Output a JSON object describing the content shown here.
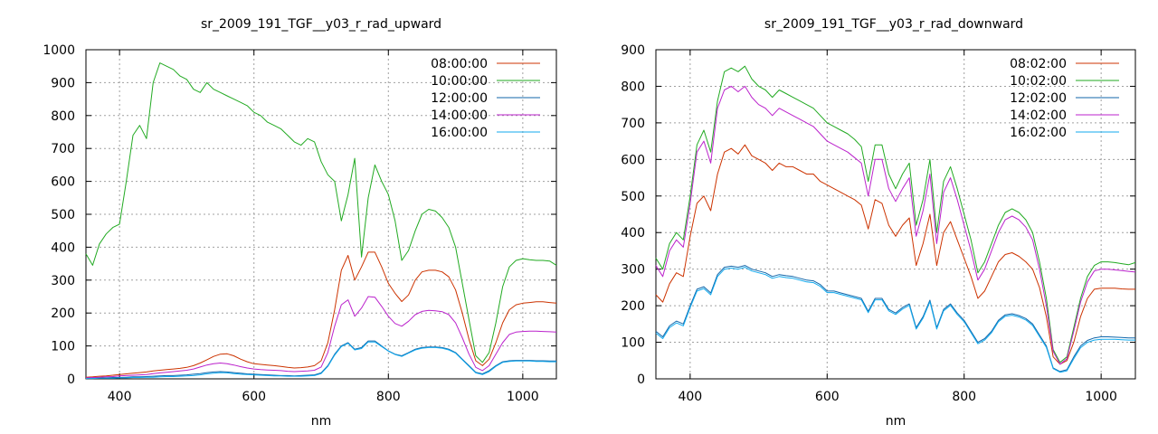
{
  "chart_data": [
    {
      "type": "line",
      "title": "sr_2009_191_TGF__y03_r_rad_upward",
      "xlabel": "nm",
      "ylabel": "",
      "xlim": [
        350,
        1050
      ],
      "ylim": [
        0,
        1000
      ],
      "xticks": [
        400,
        600,
        800,
        1000
      ],
      "yticks": [
        0,
        100,
        200,
        300,
        400,
        500,
        600,
        700,
        800,
        900,
        1000
      ],
      "grid": true,
      "legend_position": "top-right",
      "x": [
        350,
        360,
        370,
        380,
        390,
        400,
        410,
        420,
        430,
        440,
        450,
        460,
        470,
        480,
        490,
        500,
        510,
        520,
        530,
        540,
        550,
        560,
        570,
        580,
        590,
        600,
        610,
        620,
        630,
        640,
        650,
        660,
        670,
        680,
        690,
        700,
        710,
        720,
        730,
        740,
        750,
        760,
        770,
        780,
        790,
        800,
        810,
        820,
        830,
        840,
        850,
        860,
        870,
        880,
        890,
        900,
        910,
        920,
        930,
        940,
        950,
        960,
        970,
        980,
        990,
        1000,
        1010,
        1020,
        1030,
        1040,
        1050
      ],
      "series": [
        {
          "name": "08:00:00",
          "color": "#cc3300",
          "values": [
            5,
            6,
            8,
            9,
            11,
            13,
            15,
            17,
            19,
            21,
            24,
            26,
            28,
            30,
            32,
            35,
            40,
            48,
            58,
            68,
            75,
            76,
            70,
            60,
            52,
            46,
            44,
            42,
            40,
            38,
            35,
            33,
            34,
            36,
            40,
            55,
            110,
            210,
            330,
            375,
            300,
            340,
            385,
            385,
            340,
            290,
            260,
            235,
            255,
            300,
            325,
            330,
            330,
            325,
            310,
            270,
            200,
            120,
            55,
            40,
            60,
            110,
            170,
            210,
            225,
            230,
            232,
            234,
            234,
            232,
            230
          ]
        },
        {
          "name": "10:00:00",
          "color": "#22aa22",
          "values": [
            380,
            345,
            410,
            440,
            460,
            470,
            600,
            740,
            770,
            730,
            900,
            960,
            950,
            940,
            920,
            910,
            880,
            870,
            900,
            880,
            870,
            860,
            850,
            840,
            830,
            810,
            800,
            780,
            770,
            760,
            740,
            720,
            710,
            730,
            720,
            660,
            620,
            600,
            480,
            560,
            670,
            370,
            550,
            650,
            600,
            560,
            480,
            360,
            390,
            450,
            500,
            515,
            510,
            490,
            460,
            400,
            290,
            180,
            70,
            50,
            80,
            170,
            280,
            340,
            360,
            365,
            362,
            360,
            360,
            358,
            345
          ]
        },
        {
          "name": "12:00:00",
          "color": "#1166aa",
          "values": [
            2,
            2,
            3,
            3,
            4,
            4,
            5,
            6,
            6,
            7,
            8,
            9,
            10,
            10,
            11,
            12,
            14,
            16,
            19,
            21,
            22,
            21,
            19,
            17,
            15,
            14,
            13,
            12,
            11,
            10,
            10,
            9,
            10,
            11,
            12,
            18,
            40,
            75,
            100,
            110,
            90,
            95,
            115,
            115,
            100,
            85,
            75,
            70,
            80,
            90,
            95,
            97,
            97,
            95,
            90,
            80,
            60,
            40,
            20,
            15,
            25,
            40,
            52,
            55,
            56,
            56,
            56,
            55,
            55,
            54,
            54
          ]
        },
        {
          "name": "14:00:00",
          "color": "#bb22cc",
          "values": [
            3,
            4,
            5,
            6,
            7,
            9,
            10,
            11,
            12,
            13,
            16,
            18,
            20,
            22,
            24,
            26,
            30,
            36,
            42,
            46,
            48,
            46,
            42,
            37,
            33,
            30,
            28,
            27,
            26,
            25,
            23,
            22,
            23,
            24,
            26,
            36,
            80,
            160,
            225,
            240,
            190,
            215,
            250,
            248,
            220,
            190,
            168,
            160,
            175,
            195,
            205,
            208,
            207,
            204,
            195,
            170,
            125,
            75,
            35,
            25,
            40,
            75,
            110,
            135,
            142,
            144,
            145,
            145,
            144,
            143,
            142
          ]
        },
        {
          "name": "16:00:00",
          "color": "#11aaee",
          "values": [
            1,
            1,
            2,
            2,
            2,
            3,
            3,
            4,
            4,
            5,
            5,
            6,
            7,
            7,
            8,
            9,
            10,
            12,
            15,
            17,
            19,
            18,
            16,
            14,
            13,
            12,
            11,
            10,
            9,
            9,
            8,
            8,
            8,
            9,
            10,
            16,
            38,
            72,
            98,
            108,
            88,
            92,
            112,
            112,
            98,
            84,
            74,
            68,
            78,
            88,
            93,
            95,
            95,
            93,
            88,
            78,
            58,
            38,
            18,
            13,
            22,
            38,
            50,
            53,
            54,
            54,
            54,
            53,
            53,
            52,
            52
          ]
        }
      ]
    },
    {
      "type": "line",
      "title": "sr_2009_191_TGF__y03_r_rad_downward",
      "xlabel": "nm",
      "ylabel": "",
      "xlim": [
        350,
        1050
      ],
      "ylim": [
        0,
        900
      ],
      "xticks": [
        400,
        600,
        800,
        1000
      ],
      "yticks": [
        0,
        100,
        200,
        300,
        400,
        500,
        600,
        700,
        800,
        900
      ],
      "grid": true,
      "legend_position": "top-right",
      "x": [
        350,
        360,
        370,
        380,
        390,
        400,
        410,
        420,
        430,
        440,
        450,
        460,
        470,
        480,
        490,
        500,
        510,
        520,
        530,
        540,
        550,
        560,
        570,
        580,
        590,
        600,
        610,
        620,
        630,
        640,
        650,
        660,
        670,
        680,
        690,
        700,
        710,
        720,
        730,
        740,
        750,
        760,
        770,
        780,
        790,
        800,
        810,
        820,
        830,
        840,
        850,
        860,
        870,
        880,
        890,
        900,
        910,
        920,
        930,
        940,
        950,
        960,
        970,
        980,
        990,
        1000,
        1010,
        1020,
        1030,
        1040,
        1050
      ],
      "series": [
        {
          "name": "08:02:00",
          "color": "#cc3300",
          "values": [
            230,
            210,
            260,
            290,
            280,
            390,
            480,
            500,
            460,
            560,
            620,
            630,
            615,
            640,
            610,
            600,
            590,
            570,
            590,
            580,
            580,
            570,
            560,
            560,
            540,
            530,
            520,
            510,
            500,
            490,
            475,
            410,
            490,
            480,
            420,
            390,
            420,
            440,
            310,
            370,
            450,
            310,
            400,
            430,
            380,
            330,
            280,
            220,
            240,
            280,
            320,
            340,
            345,
            335,
            320,
            300,
            250,
            170,
            60,
            40,
            50,
            100,
            170,
            220,
            245,
            248,
            248,
            248,
            246,
            245,
            245
          ]
        },
        {
          "name": "10:02:00",
          "color": "#22aa22",
          "values": [
            330,
            300,
            370,
            400,
            380,
            500,
            640,
            680,
            620,
            760,
            840,
            850,
            840,
            855,
            820,
            800,
            790,
            770,
            790,
            780,
            770,
            760,
            750,
            740,
            720,
            700,
            690,
            680,
            670,
            655,
            635,
            540,
            640,
            640,
            560,
            520,
            560,
            590,
            420,
            490,
            600,
            400,
            540,
            580,
            520,
            450,
            380,
            290,
            320,
            370,
            420,
            455,
            465,
            455,
            435,
            400,
            320,
            220,
            80,
            45,
            60,
            140,
            220,
            280,
            310,
            320,
            320,
            318,
            315,
            312,
            318
          ]
        },
        {
          "name": "12:02:00",
          "color": "#1166aa",
          "values": [
            130,
            115,
            145,
            158,
            150,
            200,
            245,
            252,
            235,
            285,
            305,
            308,
            305,
            310,
            300,
            295,
            290,
            280,
            285,
            282,
            280,
            275,
            270,
            268,
            258,
            240,
            240,
            235,
            230,
            225,
            220,
            185,
            220,
            220,
            190,
            180,
            195,
            205,
            140,
            170,
            215,
            140,
            190,
            205,
            180,
            160,
            130,
            100,
            110,
            130,
            160,
            175,
            178,
            173,
            165,
            150,
            120,
            90,
            30,
            20,
            25,
            60,
            90,
            105,
            112,
            115,
            115,
            114,
            113,
            112,
            112
          ]
        },
        {
          "name": "14:02:00",
          "color": "#bb22cc",
          "values": [
            310,
            280,
            350,
            380,
            360,
            480,
            620,
            650,
            590,
            740,
            790,
            800,
            785,
            800,
            770,
            750,
            740,
            720,
            740,
            730,
            720,
            710,
            700,
            690,
            670,
            650,
            640,
            630,
            620,
            605,
            590,
            500,
            600,
            600,
            520,
            485,
            520,
            550,
            390,
            460,
            560,
            370,
            510,
            550,
            490,
            420,
            350,
            270,
            300,
            350,
            400,
            435,
            445,
            435,
            415,
            380,
            300,
            200,
            75,
            40,
            55,
            130,
            210,
            265,
            295,
            300,
            300,
            298,
            296,
            294,
            292
          ]
        },
        {
          "name": "16:02:00",
          "color": "#11aaee",
          "values": [
            125,
            110,
            140,
            153,
            145,
            195,
            240,
            247,
            230,
            280,
            300,
            303,
            300,
            305,
            295,
            290,
            285,
            275,
            280,
            277,
            275,
            270,
            265,
            263,
            253,
            236,
            236,
            231,
            226,
            221,
            216,
            181,
            216,
            216,
            186,
            176,
            191,
            201,
            136,
            166,
            211,
            136,
            186,
            201,
            176,
            156,
            126,
            96,
            106,
            126,
            156,
            171,
            174,
            169,
            161,
            146,
            116,
            86,
            28,
            18,
            22,
            55,
            85,
            100,
            106,
            108,
            108,
            108,
            107,
            106,
            106
          ]
        }
      ]
    }
  ]
}
